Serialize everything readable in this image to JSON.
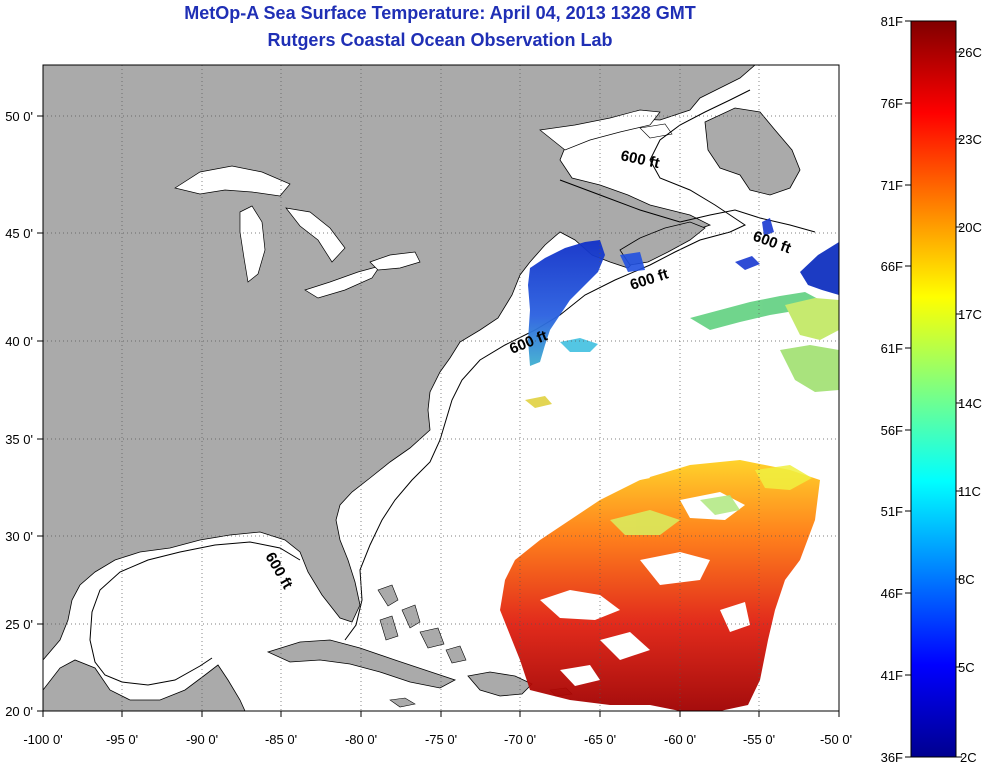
{
  "title": {
    "line1": "MetOp-A Sea Surface Temperature:  April 04, 2013 1328 GMT",
    "line2": "Rutgers Coastal Ocean Observation Lab"
  },
  "map": {
    "lon_ticks": [
      "-100 0'",
      "-95 0'",
      "-90 0'",
      "-85 0'",
      "-80 0'",
      "-75 0'",
      "-70 0'",
      "-65 0'",
      "-60 0'",
      "-55 0'",
      "-50 0'"
    ],
    "lat_ticks": [
      "20 0'",
      "25 0'",
      "30 0'",
      "35 0'",
      "40 0'",
      "45 0'",
      "50 0'"
    ],
    "lon_range": [
      -100,
      -50
    ],
    "lat_range": [
      20,
      52.8
    ],
    "land_color": "#aaaaaa",
    "ocean_color": "#ffffff",
    "contour_labels": [
      "600 ft",
      "600 ft",
      "600 ft",
      "600 ft",
      "600 ft"
    ]
  },
  "colorbar": {
    "left_labels": [
      "81F",
      "76F",
      "71F",
      "66F",
      "61F",
      "56F",
      "51F",
      "46F",
      "41F",
      "36F"
    ],
    "right_labels": [
      "26C",
      "23C",
      "20C",
      "17C",
      "14C",
      "11C",
      "8C",
      "5C",
      "2C"
    ],
    "colors": [
      "#00008f",
      "#0000ff",
      "#00ffff",
      "#ffff00",
      "#ff0000",
      "#800000"
    ]
  }
}
